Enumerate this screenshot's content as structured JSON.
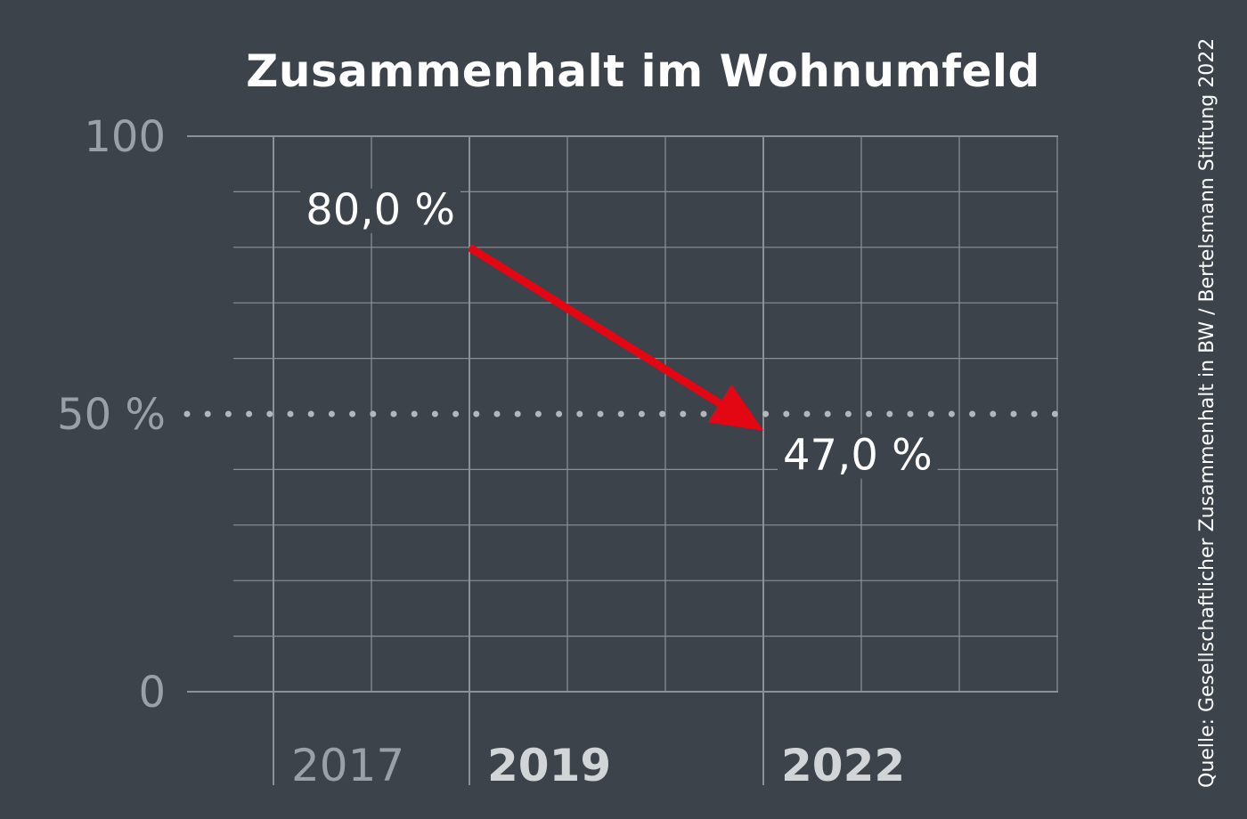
{
  "chart_data": {
    "type": "line",
    "title": "Zusammenhalt im Wohnumfeld",
    "source": "Quelle: Gesellschaftlicher Zusammenhalt in BW / Bertelsmann Stiftung 2022",
    "ylim": [
      0,
      100
    ],
    "y_ticks": [
      {
        "value": 0,
        "label": "0"
      },
      {
        "value": 50,
        "label": "50 %"
      },
      {
        "value": 100,
        "label": "100"
      }
    ],
    "x_ticks": [
      {
        "year": 2017,
        "label": "2017",
        "emphasis": false
      },
      {
        "year": 2019,
        "label": "2019",
        "emphasis": true
      },
      {
        "year": 2022,
        "label": "2022",
        "emphasis": true
      }
    ],
    "xlim": [
      2016,
      2025
    ],
    "reference_line": {
      "value": 50,
      "style": "dotted"
    },
    "grid": true,
    "series": [
      {
        "color": "#e30613",
        "points": [
          {
            "x": 2019,
            "y": 80.0,
            "label": "80,0 %"
          },
          {
            "x": 2022,
            "y": 47.0,
            "label": "47,0 %"
          }
        ]
      }
    ]
  },
  "colors": {
    "background": "#3c434a",
    "grid": "#8c9196",
    "arrow": "#e30613",
    "tick_muted": "#9aa0a6",
    "tick_emphasis": "#d2d5d8"
  }
}
